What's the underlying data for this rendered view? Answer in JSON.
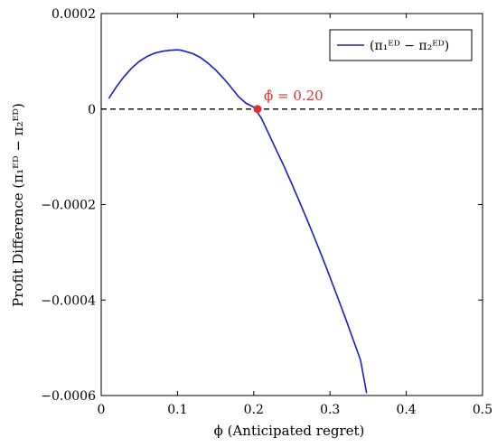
{
  "chart_data": {
    "type": "line",
    "title": "",
    "xlabel": "ϕ (Anticipated regret)",
    "ylabel": "Profit Difference (π₁ᴱᴰ − π₂ᴱᴰ)",
    "xlim": [
      0,
      0.5
    ],
    "ylim": [
      -0.0006,
      0.0002
    ],
    "x_ticks": [
      0,
      0.1,
      0.2,
      0.3,
      0.4,
      0.5
    ],
    "x_tick_labels": [
      "0",
      "0.1",
      "0.2",
      "0.3",
      "0.4",
      "0.5"
    ],
    "y_ticks": [
      0.0002,
      0,
      -0.0002,
      -0.0004,
      -0.0006
    ],
    "y_tick_labels": [
      "0.0002",
      "0",
      "−0.0002",
      "−0.0004",
      "−0.0006"
    ],
    "grid": false,
    "legend_position": "top-right",
    "series": [
      {
        "name": "(π₁ᴱᴰ − π₂ᴱᴰ)",
        "color": "#1a1acc",
        "x": [
          0.01,
          0.02,
          0.03,
          0.04,
          0.05,
          0.06,
          0.07,
          0.08,
          0.09,
          0.1,
          0.105,
          0.11,
          0.12,
          0.13,
          0.14,
          0.15,
          0.16,
          0.17,
          0.18,
          0.19,
          0.2,
          0.21,
          0.22,
          0.23,
          0.24,
          0.25,
          0.26,
          0.27,
          0.28,
          0.29,
          0.3,
          0.31,
          0.32,
          0.33,
          0.34,
          0.348
        ],
        "y": [
          2.2e-05,
          4.7e-05,
          6.8e-05,
          8.6e-05,
          0.0001,
          0.00011,
          0.000117,
          0.000121,
          0.000123,
          0.000124,
          0.000123,
          0.000121,
          0.000116,
          0.000108,
          9.6e-05,
          8.2e-05,
          6.5e-05,
          4.6e-05,
          2.6e-05,
          1.2e-05,
          4e-06,
          -1.9e-05,
          -5.3e-05,
          -8.7e-05,
          -0.000121,
          -0.000157,
          -0.000194,
          -0.000232,
          -0.000271,
          -0.000311,
          -0.000352,
          -0.000394,
          -0.000437,
          -0.000481,
          -0.000526,
          -0.000595
        ]
      },
      {
        "name": "",
        "style": "dashed",
        "color": "#000000",
        "x": [
          0,
          0.5
        ],
        "y": [
          0,
          0
        ]
      }
    ],
    "annotations": [
      {
        "label": "ϕ̂ = 0.20",
        "x": 0.205,
        "y": 0,
        "color": "#e03030"
      }
    ]
  }
}
